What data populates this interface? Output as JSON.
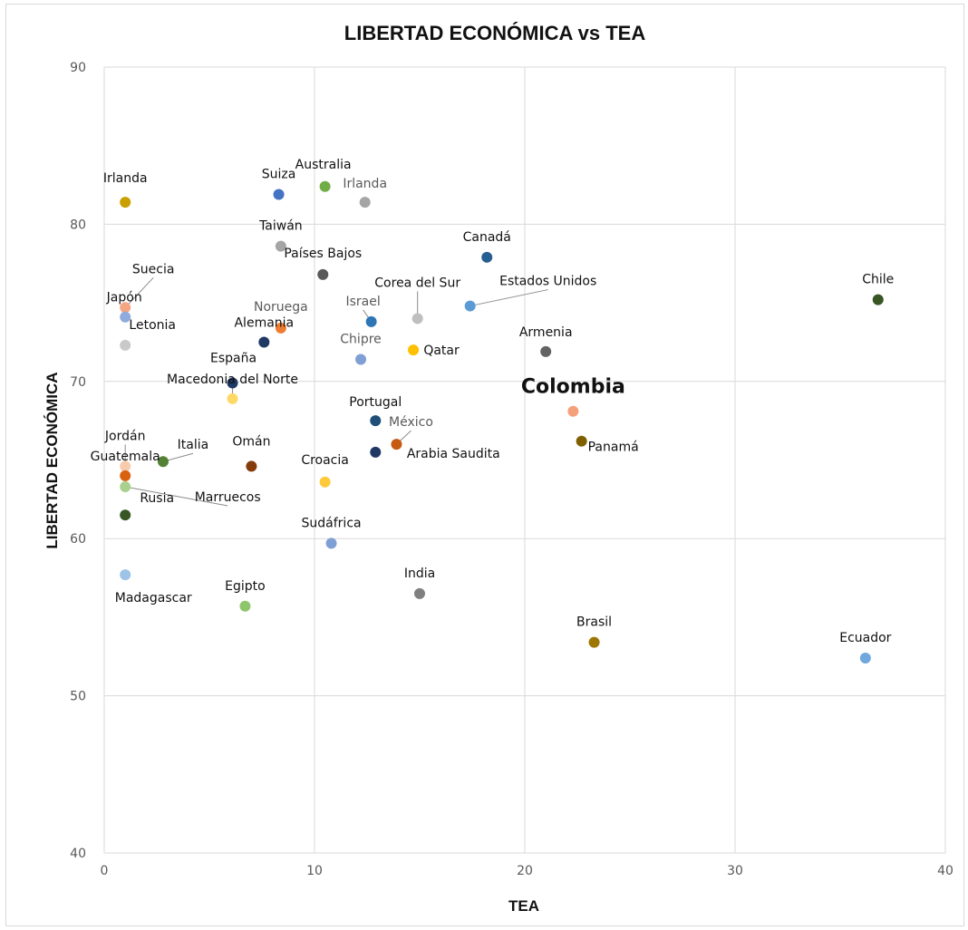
{
  "chart_data": {
    "type": "scatter",
    "title": "LIBERTAD ECONÓMICA vs TEA",
    "xlabel": "TEA",
    "ylabel": "LIBERTAD ECONÓMICA",
    "xlim": [
      0,
      40
    ],
    "ylim": [
      40,
      90
    ],
    "xticks": [
      "0",
      "10",
      "20",
      "30",
      "40"
    ],
    "yticks": [
      "40",
      "50",
      "60",
      "70",
      "80",
      "90"
    ],
    "grid": true,
    "points": [
      {
        "label": "Irlanda",
        "x": 1.0,
        "y": 81.4,
        "color": "#c9a000"
      },
      {
        "label": "Suiza",
        "x": 8.3,
        "y": 81.9,
        "color": "#4472c4"
      },
      {
        "label": "Australia",
        "x": 10.5,
        "y": 82.4,
        "color": "#70ad47"
      },
      {
        "label": "Irlanda",
        "x": 12.4,
        "y": 81.4,
        "color": "#a5a5a5"
      },
      {
        "label": "Taiwán",
        "x": 8.4,
        "y": 78.6,
        "color": "#a5a5a5"
      },
      {
        "label": "Países Bajos",
        "x": 10.4,
        "y": 76.8,
        "color": "#595959"
      },
      {
        "label": "Canadá",
        "x": 18.2,
        "y": 77.9,
        "color": "#255e91"
      },
      {
        "label": "Chile",
        "x": 36.8,
        "y": 75.2,
        "color": "#375623"
      },
      {
        "label": "Suecia",
        "x": 1.0,
        "y": 74.7,
        "color": "#f4a582"
      },
      {
        "label": "Japón",
        "x": 1.0,
        "y": 74.1,
        "color": "#8faadc"
      },
      {
        "label": "Letonia",
        "x": 1.0,
        "y": 72.3,
        "color": "#c9c9c9"
      },
      {
        "label": "Noruega",
        "x": 8.4,
        "y": 73.4,
        "color": "#ed7d31"
      },
      {
        "label": "Alemania",
        "x": 7.6,
        "y": 72.5,
        "color": "#1f3864"
      },
      {
        "label": "Israel",
        "x": 12.7,
        "y": 73.8,
        "color": "#2e75b6"
      },
      {
        "label": "Corea del Sur",
        "x": 14.9,
        "y": 74.0,
        "color": "#bfbfbf"
      },
      {
        "label": "Estados Unidos",
        "x": 17.4,
        "y": 74.8,
        "color": "#5b9bd5"
      },
      {
        "label": "Chipre",
        "x": 12.2,
        "y": 71.4,
        "color": "#7f9fd5"
      },
      {
        "label": "Qatar",
        "x": 14.7,
        "y": 72.0,
        "color": "#ffc000"
      },
      {
        "label": "Armenia",
        "x": 21.0,
        "y": 71.9,
        "color": "#636363"
      },
      {
        "label": "España",
        "x": 6.1,
        "y": 69.9,
        "color": "#203864"
      },
      {
        "label": "Macedonia del Norte",
        "x": 6.1,
        "y": 68.9,
        "color": "#ffd966"
      },
      {
        "label": "Colombia",
        "x": 22.3,
        "y": 68.1,
        "color": "#f4a07a"
      },
      {
        "label": "Portugal",
        "x": 12.9,
        "y": 67.5,
        "color": "#1f4e79"
      },
      {
        "label": "Panamá",
        "x": 22.7,
        "y": 66.2,
        "color": "#7f6000"
      },
      {
        "label": "México",
        "x": 13.9,
        "y": 66.0,
        "color": "#c55a11"
      },
      {
        "label": "Arabia Saudita",
        "x": 12.9,
        "y": 65.5,
        "color": "#203864"
      },
      {
        "label": "Jordán",
        "x": 1.0,
        "y": 64.6,
        "color": "#f8cbad"
      },
      {
        "label": "Guatemala",
        "x": 1.0,
        "y": 64.0,
        "color": "#d9610f"
      },
      {
        "label": "Italia",
        "x": 2.8,
        "y": 64.9,
        "color": "#548235"
      },
      {
        "label": "Omán",
        "x": 7.0,
        "y": 64.6,
        "color": "#843c0c"
      },
      {
        "label": "Marruecos",
        "x": 1.0,
        "y": 63.3,
        "color": "#a9d18e"
      },
      {
        "label": "Croacia",
        "x": 10.5,
        "y": 63.6,
        "color": "#ffc93c"
      },
      {
        "label": "Rusia",
        "x": 1.0,
        "y": 61.5,
        "color": "#375623"
      },
      {
        "label": "Sudáfrica",
        "x": 10.8,
        "y": 59.7,
        "color": "#7f9fd5"
      },
      {
        "label": "Madagascar",
        "x": 1.0,
        "y": 57.7,
        "color": "#9dc3e6"
      },
      {
        "label": "Egipto",
        "x": 6.7,
        "y": 55.7,
        "color": "#8fc66b"
      },
      {
        "label": "India",
        "x": 15.0,
        "y": 56.5,
        "color": "#7f7f7f"
      },
      {
        "label": "Brasil",
        "x": 23.3,
        "y": 53.4,
        "color": "#9c7600"
      },
      {
        "label": "Ecuador",
        "x": 36.2,
        "y": 52.4,
        "color": "#6fa8dc"
      }
    ]
  }
}
